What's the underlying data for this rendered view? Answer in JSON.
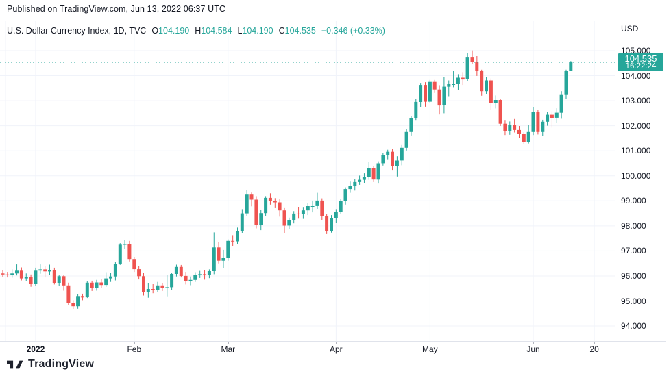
{
  "header": {
    "caption": "Published on TradingView.com, Jun 13, 2022 06:37 UTC"
  },
  "legend": {
    "title": "U.S. Dollar Currency Index, 1D, TVC",
    "ohlc": [
      {
        "label": "O",
        "value": "104.190"
      },
      {
        "label": "H",
        "value": "104.584"
      },
      {
        "label": "L",
        "value": "104.190"
      },
      {
        "label": "C",
        "value": "104.535"
      }
    ],
    "change": "+0.346 (+0.33%)"
  },
  "price_axis": {
    "currency_label": "USD",
    "ticks": [
      "105.000",
      "104.000",
      "103.000",
      "102.000",
      "101.000",
      "100.000",
      "99.000",
      "98.000",
      "97.000",
      "96.000",
      "95.000",
      "94.000"
    ],
    "last_price": "104.535",
    "countdown": "16:22:24"
  },
  "time_axis": {
    "ticks": [
      {
        "index": 7,
        "label": "2022",
        "bold": true
      },
      {
        "index": 28,
        "label": "Feb"
      },
      {
        "index": 48,
        "label": "Mar"
      },
      {
        "index": 71,
        "label": "Apr"
      },
      {
        "index": 91,
        "label": "May"
      },
      {
        "index": 113,
        "label": "Jun"
      },
      {
        "index": 126,
        "label": "20"
      }
    ]
  },
  "footer": {
    "brand": "TradingView"
  },
  "colors": {
    "up": "#26a69a",
    "down": "#ef5350",
    "grid": "#f0f3fa",
    "border": "#e0e3eb",
    "text": "#131722",
    "price_line": "#26a69a",
    "label_bg": "#26a69a"
  },
  "chart_data": {
    "type": "candlestick",
    "title": "U.S. Dollar Currency Index, 1D, TVC",
    "symbol": "U.S. Dollar Currency Index",
    "interval": "1D",
    "exchange": "TVC",
    "currency": "USD",
    "last_price": 104.535,
    "change": 0.346,
    "change_pct": 0.33,
    "y_range_visible": [
      93.4,
      106.2
    ],
    "price_gridlines": [
      94,
      95,
      96,
      97,
      98,
      99,
      100,
      101,
      102,
      103,
      104,
      105
    ],
    "candles": [
      [
        "2021-12-23",
        96.1,
        96.23,
        95.96,
        96.06
      ],
      [
        "2021-12-24",
        96.06,
        96.16,
        95.94,
        96.03
      ],
      [
        "2021-12-27",
        96.03,
        96.26,
        95.93,
        96.1
      ],
      [
        "2021-12-28",
        96.1,
        96.46,
        96.02,
        96.21
      ],
      [
        "2021-12-29",
        96.21,
        96.34,
        95.82,
        95.9
      ],
      [
        "2021-12-30",
        95.9,
        96.1,
        95.78,
        95.97
      ],
      [
        "2021-12-31",
        95.97,
        96.06,
        95.57,
        95.67
      ],
      [
        "2022-01-03",
        95.67,
        96.33,
        95.61,
        96.21
      ],
      [
        "2022-01-04",
        96.21,
        96.46,
        96.09,
        96.26
      ],
      [
        "2022-01-05",
        96.26,
        96.41,
        95.94,
        96.18
      ],
      [
        "2022-01-06",
        96.18,
        96.45,
        96.03,
        96.24
      ],
      [
        "2022-01-07",
        96.24,
        96.33,
        95.66,
        95.72
      ],
      [
        "2022-01-10",
        95.72,
        96.05,
        95.59,
        95.99
      ],
      [
        "2022-01-11",
        95.99,
        96.04,
        95.41,
        95.62
      ],
      [
        "2022-01-12",
        95.62,
        95.73,
        94.85,
        94.91
      ],
      [
        "2022-01-13",
        94.91,
        95.03,
        94.66,
        94.79
      ],
      [
        "2022-01-14",
        94.79,
        95.27,
        94.69,
        95.17
      ],
      [
        "2022-01-17",
        95.17,
        95.29,
        95.03,
        95.15
      ],
      [
        "2022-01-18",
        95.15,
        95.78,
        95.12,
        95.73
      ],
      [
        "2022-01-19",
        95.73,
        95.81,
        95.4,
        95.51
      ],
      [
        "2022-01-20",
        95.51,
        95.84,
        95.41,
        95.74
      ],
      [
        "2022-01-21",
        95.74,
        95.87,
        95.51,
        95.64
      ],
      [
        "2022-01-24",
        95.64,
        96.15,
        95.56,
        95.9
      ],
      [
        "2022-01-25",
        95.9,
        96.12,
        95.76,
        95.98
      ],
      [
        "2022-01-26",
        95.98,
        96.57,
        95.82,
        96.48
      ],
      [
        "2022-01-27",
        96.48,
        97.31,
        96.44,
        97.25
      ],
      [
        "2022-01-28",
        97.25,
        97.44,
        97.07,
        97.27
      ],
      [
        "2022-01-31",
        97.27,
        97.4,
        96.58,
        96.65
      ],
      [
        "2022-02-01",
        96.65,
        96.74,
        96.16,
        96.27
      ],
      [
        "2022-02-02",
        96.27,
        96.41,
        95.86,
        95.99
      ],
      [
        "2022-02-03",
        95.99,
        96.12,
        95.22,
        95.36
      ],
      [
        "2022-02-04",
        95.36,
        95.71,
        95.13,
        95.48
      ],
      [
        "2022-02-07",
        95.48,
        95.67,
        95.31,
        95.43
      ],
      [
        "2022-02-08",
        95.43,
        95.76,
        95.37,
        95.62
      ],
      [
        "2022-02-09",
        95.62,
        95.72,
        95.4,
        95.53
      ],
      [
        "2022-02-10",
        95.53,
        96.03,
        95.16,
        95.55
      ],
      [
        "2022-02-11",
        95.55,
        96.12,
        95.44,
        96.08
      ],
      [
        "2022-02-14",
        96.08,
        96.45,
        95.98,
        96.36
      ],
      [
        "2022-02-15",
        96.36,
        96.44,
        95.94,
        96.0
      ],
      [
        "2022-02-16",
        96.0,
        96.16,
        95.66,
        95.78
      ],
      [
        "2022-02-17",
        95.78,
        95.98,
        95.63,
        95.84
      ],
      [
        "2022-02-18",
        95.84,
        96.15,
        95.76,
        96.04
      ],
      [
        "2022-02-21",
        96.04,
        96.2,
        95.92,
        96.07
      ],
      [
        "2022-02-22",
        96.07,
        96.23,
        95.85,
        96.03
      ],
      [
        "2022-02-23",
        96.03,
        96.26,
        95.91,
        96.19
      ],
      [
        "2022-02-24",
        96.19,
        97.74,
        96.07,
        97.14
      ],
      [
        "2022-02-25",
        97.14,
        97.35,
        96.5,
        96.61
      ],
      [
        "2022-02-28",
        96.61,
        97.04,
        96.32,
        96.71
      ],
      [
        "2022-03-01",
        96.71,
        97.46,
        96.61,
        97.4
      ],
      [
        "2022-03-02",
        97.4,
        97.63,
        97.18,
        97.38
      ],
      [
        "2022-03-03",
        97.38,
        97.93,
        97.27,
        97.79
      ],
      [
        "2022-03-04",
        97.79,
        98.67,
        97.7,
        98.5
      ],
      [
        "2022-03-07",
        98.5,
        99.43,
        98.39,
        99.25
      ],
      [
        "2022-03-08",
        99.25,
        99.33,
        98.78,
        99.05
      ],
      [
        "2022-03-09",
        99.05,
        99.19,
        97.9,
        98.04
      ],
      [
        "2022-03-10",
        98.04,
        98.63,
        97.83,
        98.51
      ],
      [
        "2022-03-11",
        98.51,
        99.19,
        98.39,
        99.12
      ],
      [
        "2022-03-14",
        99.12,
        99.3,
        98.85,
        98.99
      ],
      [
        "2022-03-15",
        98.99,
        99.11,
        98.71,
        98.94
      ],
      [
        "2022-03-16",
        98.94,
        99.07,
        98.37,
        98.62
      ],
      [
        "2022-03-17",
        98.62,
        98.71,
        97.71,
        98.01
      ],
      [
        "2022-03-18",
        98.01,
        98.33,
        97.88,
        98.23
      ],
      [
        "2022-03-21",
        98.23,
        98.59,
        98.1,
        98.49
      ],
      [
        "2022-03-22",
        98.49,
        98.74,
        98.29,
        98.46
      ],
      [
        "2022-03-23",
        98.46,
        98.73,
        98.28,
        98.62
      ],
      [
        "2022-03-24",
        98.62,
        98.92,
        98.43,
        98.79
      ],
      [
        "2022-03-25",
        98.79,
        99.01,
        98.54,
        98.79
      ],
      [
        "2022-03-28",
        98.79,
        99.32,
        98.68,
        99.01
      ],
      [
        "2022-03-29",
        99.01,
        99.1,
        98.22,
        98.4
      ],
      [
        "2022-03-30",
        98.4,
        98.46,
        97.67,
        97.79
      ],
      [
        "2022-03-31",
        97.79,
        98.43,
        97.73,
        98.31
      ],
      [
        "2022-04-01",
        98.31,
        98.67,
        98.12,
        98.57
      ],
      [
        "2022-04-04",
        98.57,
        99.09,
        98.47,
        98.99
      ],
      [
        "2022-04-05",
        98.99,
        99.54,
        98.85,
        99.47
      ],
      [
        "2022-04-06",
        99.47,
        99.77,
        99.32,
        99.61
      ],
      [
        "2022-04-07",
        99.61,
        99.86,
        99.41,
        99.75
      ],
      [
        "2022-04-08",
        99.75,
        100.01,
        99.64,
        99.84
      ],
      [
        "2022-04-11",
        99.84,
        100.1,
        99.7,
        99.95
      ],
      [
        "2022-04-12",
        99.95,
        100.54,
        99.84,
        100.31
      ],
      [
        "2022-04-13",
        100.31,
        100.4,
        99.75,
        99.85
      ],
      [
        "2022-04-14",
        99.85,
        100.58,
        99.69,
        100.5
      ],
      [
        "2022-04-18",
        100.5,
        100.9,
        100.41,
        100.84
      ],
      [
        "2022-04-19",
        100.84,
        101.04,
        100.66,
        100.96
      ],
      [
        "2022-04-20",
        100.96,
        101.06,
        100.21,
        100.38
      ],
      [
        "2022-04-21",
        100.38,
        100.78,
        99.97,
        100.61
      ],
      [
        "2022-04-22",
        100.61,
        101.23,
        100.42,
        101.12
      ],
      [
        "2022-04-25",
        101.12,
        101.87,
        101.01,
        101.75
      ],
      [
        "2022-04-26",
        101.75,
        102.38,
        101.61,
        102.3
      ],
      [
        "2022-04-27",
        102.3,
        103.06,
        102.23,
        102.95
      ],
      [
        "2022-04-28",
        102.95,
        103.71,
        102.73,
        103.63
      ],
      [
        "2022-04-29",
        103.63,
        103.74,
        102.76,
        102.96
      ],
      [
        "2022-05-02",
        102.96,
        103.83,
        102.9,
        103.75
      ],
      [
        "2022-05-03",
        103.75,
        103.83,
        103.31,
        103.45
      ],
      [
        "2022-05-04",
        103.45,
        103.62,
        102.45,
        102.81
      ],
      [
        "2022-05-05",
        102.81,
        103.95,
        102.5,
        103.56
      ],
      [
        "2022-05-06",
        103.56,
        103.81,
        103.18,
        103.66
      ],
      [
        "2022-05-09",
        103.66,
        104.2,
        103.54,
        103.66
      ],
      [
        "2022-05-10",
        103.66,
        104.06,
        103.42,
        103.92
      ],
      [
        "2022-05-11",
        103.92,
        104.14,
        103.63,
        103.85
      ],
      [
        "2022-05-12",
        103.85,
        104.9,
        103.79,
        104.75
      ],
      [
        "2022-05-13",
        104.75,
        105.01,
        104.48,
        104.56
      ],
      [
        "2022-05-16",
        104.56,
        104.78,
        103.99,
        104.19
      ],
      [
        "2022-05-17",
        104.19,
        104.24,
        103.2,
        103.38
      ],
      [
        "2022-05-18",
        103.38,
        103.95,
        103.25,
        103.81
      ],
      [
        "2022-05-19",
        103.81,
        103.89,
        102.64,
        102.91
      ],
      [
        "2022-05-20",
        102.91,
        103.21,
        102.69,
        103.03
      ],
      [
        "2022-05-23",
        103.03,
        103.06,
        101.99,
        102.08
      ],
      [
        "2022-05-24",
        102.08,
        102.23,
        101.63,
        101.78
      ],
      [
        "2022-05-25",
        101.78,
        102.17,
        101.64,
        102.04
      ],
      [
        "2022-05-26",
        102.04,
        102.27,
        101.73,
        101.83
      ],
      [
        "2022-05-27",
        101.83,
        101.99,
        101.52,
        101.67
      ],
      [
        "2022-05-30",
        101.67,
        101.74,
        101.28,
        101.34
      ],
      [
        "2022-05-31",
        101.34,
        102.02,
        101.29,
        101.75
      ],
      [
        "2022-06-01",
        101.75,
        102.74,
        101.63,
        102.54
      ],
      [
        "2022-06-02",
        102.54,
        102.63,
        101.65,
        101.75
      ],
      [
        "2022-06-03",
        101.75,
        102.24,
        101.58,
        102.16
      ],
      [
        "2022-06-06",
        102.16,
        102.56,
        102.0,
        102.44
      ],
      [
        "2022-06-07",
        102.44,
        102.58,
        101.92,
        102.32
      ],
      [
        "2022-06-08",
        102.32,
        102.7,
        102.11,
        102.52
      ],
      [
        "2022-06-09",
        102.52,
        103.38,
        102.28,
        103.23
      ],
      [
        "2022-06-10",
        103.23,
        104.24,
        103.06,
        104.19
      ],
      [
        "2022-06-13",
        104.19,
        104.584,
        104.19,
        104.535
      ]
    ]
  }
}
